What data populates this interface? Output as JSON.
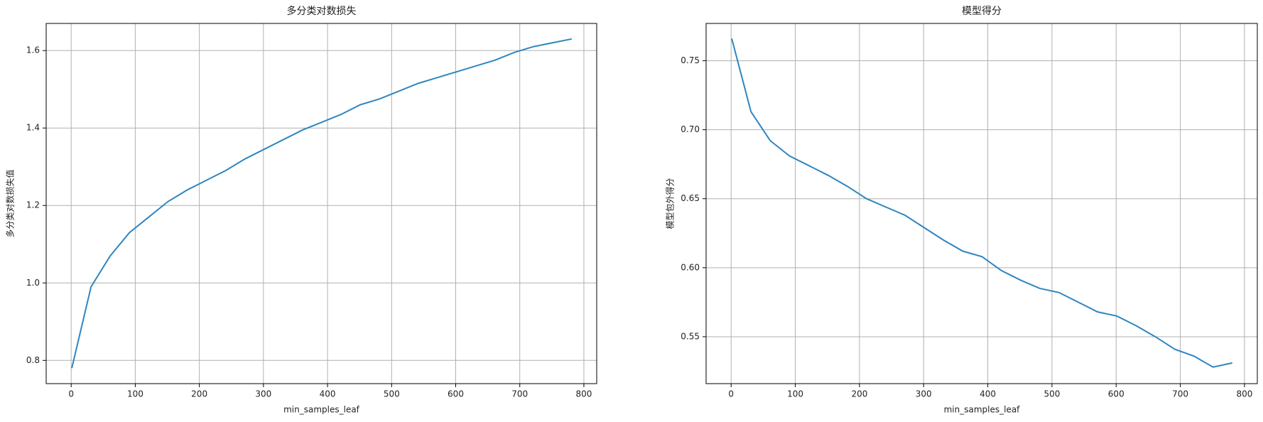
{
  "chart_data": [
    {
      "type": "line",
      "title": "多分类对数损失",
      "x_label": "min_samples_leaf",
      "y_label": "多分类对数损失值",
      "x": [
        1,
        31,
        61,
        91,
        121,
        151,
        181,
        211,
        241,
        271,
        301,
        331,
        361,
        391,
        421,
        451,
        481,
        511,
        541,
        571,
        601,
        631,
        661,
        691,
        721,
        751,
        781
      ],
      "series": [
        {
          "color": "#2e86c1",
          "values": [
            0.78,
            0.99,
            1.07,
            1.13,
            1.17,
            1.21,
            1.24,
            1.265,
            1.29,
            1.32,
            1.345,
            1.37,
            1.395,
            1.415,
            1.435,
            1.46,
            1.475,
            1.495,
            1.515,
            1.53,
            1.545,
            1.56,
            1.575,
            1.595,
            1.61,
            1.62,
            1.63
          ]
        }
      ],
      "xlim": [
        -39,
        820
      ],
      "ylim": [
        0.74,
        1.67
      ],
      "xticks": [
        0,
        100,
        200,
        300,
        400,
        500,
        600,
        700,
        800
      ],
      "yticks": [
        0.8,
        {
          "value": 1.0,
          "label": "1.0"
        },
        1.2,
        1.4,
        1.6
      ],
      "grid": true
    },
    {
      "type": "line",
      "title": "模型得分",
      "x_label": "min_samples_leaf",
      "y_label": "模型包外得分",
      "x": [
        1,
        31,
        61,
        91,
        121,
        151,
        181,
        211,
        241,
        271,
        301,
        331,
        361,
        391,
        421,
        451,
        481,
        511,
        541,
        571,
        601,
        631,
        661,
        691,
        721,
        751,
        781
      ],
      "series": [
        {
          "color": "#2e86c1",
          "values": [
            0.766,
            0.713,
            0.692,
            0.681,
            0.674,
            0.667,
            0.659,
            0.65,
            0.644,
            0.638,
            0.629,
            0.62,
            0.612,
            0.608,
            0.598,
            0.591,
            0.585,
            0.582,
            0.575,
            0.568,
            0.565,
            0.558,
            0.55,
            0.541,
            0.536,
            0.528,
            0.531
          ]
        }
      ],
      "xlim": [
        -39,
        820
      ],
      "ylim": [
        0.516,
        0.777
      ],
      "xticks": [
        0,
        100,
        200,
        300,
        400,
        500,
        600,
        700,
        800
      ],
      "yticks": [
        0.55,
        {
          "value": 0.6,
          "label": "0.60"
        },
        0.65,
        {
          "value": 0.7,
          "label": "0.70"
        },
        0.75
      ],
      "grid": true
    }
  ]
}
